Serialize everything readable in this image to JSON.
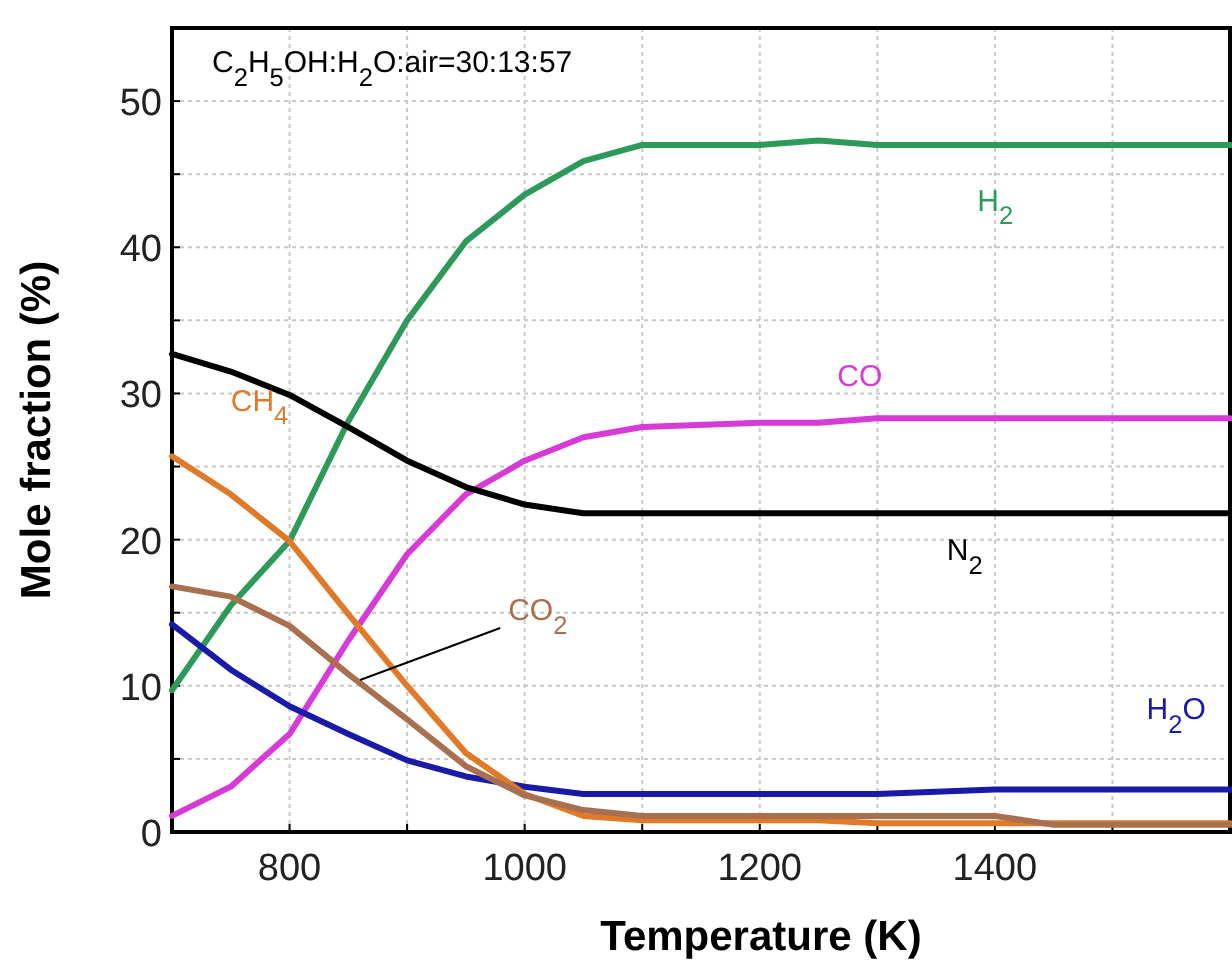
{
  "chart_data": {
    "type": "line",
    "xlabel": "Temperature (K)",
    "ylabel": "Mole fraction (%)",
    "annotations": [
      "C$_{2}$H$_{5}$OH:H$_{2}$O:air=30:13:57"
    ],
    "x": [
      700,
      750,
      800,
      850,
      900,
      950,
      1000,
      1050,
      1100,
      1200,
      1250,
      1300,
      1400,
      1450,
      1500,
      1600
    ],
    "xlim": [
      700,
      1600
    ],
    "ylim": [
      0,
      55
    ],
    "xticks": [
      800,
      {
        "value": 900,
        "label": null
      },
      1000,
      {
        "value": 1100,
        "label": null
      },
      1200,
      {
        "value": 1300,
        "label": null
      },
      1400,
      {
        "value": 1500,
        "label": null
      }
    ],
    "yticks": [
      0,
      {
        "value": 5,
        "label": null
      },
      10,
      {
        "value": 15,
        "label": null
      },
      20,
      {
        "value": 25,
        "label": null
      },
      30,
      {
        "value": 35,
        "label": null
      },
      40,
      {
        "value": 45,
        "label": null
      },
      50
    ],
    "grid": true,
    "marker": "none",
    "line_style": "solid",
    "series": [
      {
        "name": "H$_{2}$",
        "color": "#2e9a5a",
        "values": [
          9.7,
          15.5,
          19.9,
          28.1,
          35,
          40.4,
          43.6,
          45.9,
          47,
          47,
          47.3,
          47,
          47,
          47,
          47,
          47
        ]
      },
      {
        "name": "CO",
        "color": "#d83ad8",
        "values": [
          1.1,
          3.1,
          6.7,
          13.1,
          19,
          23.1,
          25.4,
          27,
          27.7,
          28,
          28,
          28.3,
          28.3,
          28.3,
          28.3,
          28.3
        ]
      },
      {
        "name": "N$_{2}$",
        "color": "#000000",
        "values": [
          32.7,
          31.5,
          29.9,
          27.7,
          25.4,
          23.6,
          22.4,
          21.8,
          21.8,
          21.8,
          21.8,
          21.8,
          21.8,
          21.8,
          21.8,
          21.8
        ]
      },
      {
        "name": "H$_{2}$O",
        "color": "#1a1aa8",
        "values": [
          14.2,
          11.1,
          8.6,
          6.7,
          4.9,
          3.8,
          3.1,
          2.6,
          2.6,
          2.6,
          2.6,
          2.6,
          2.9,
          2.9,
          2.9,
          2.9
        ]
      },
      {
        "name": "CH$_{4}$",
        "color": "#e07a28",
        "values": [
          25.7,
          23.1,
          19.9,
          14.9,
          10,
          5.4,
          2.6,
          1.1,
          0.8,
          0.8,
          0.8,
          0.6,
          0.6,
          0.6,
          0.6,
          0.6
        ]
      },
      {
        "name": "CO$_{2}$",
        "color": "#a8704f",
        "values": [
          16.8,
          16.1,
          14.1,
          10.8,
          7.7,
          4.5,
          2.5,
          1.5,
          1.1,
          1.1,
          1.1,
          1.1,
          1.1,
          0.5,
          0.5,
          0.5
        ]
      }
    ]
  }
}
